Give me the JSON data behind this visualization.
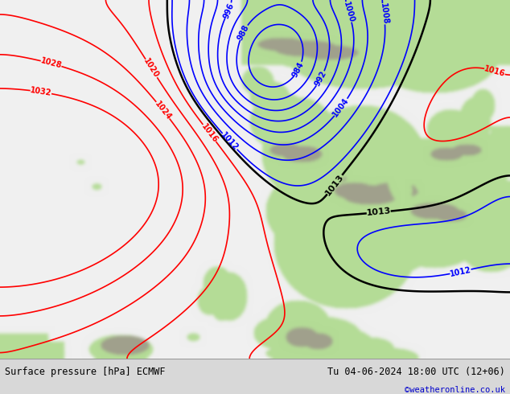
{
  "title_left": "Surface pressure [hPa] ECMWF",
  "title_right": "Tu 04-06-2024 18:00 UTC (12+06)",
  "credit": "©weatheronline.co.uk",
  "fig_width": 6.34,
  "fig_height": 4.9,
  "dpi": 100,
  "credit_color": "#0000cc",
  "ocean_color": [
    240,
    240,
    240
  ],
  "land_color": [
    180,
    220,
    150
  ],
  "mountain_color": [
    160,
    160,
    140
  ],
  "bottom_bar_color": "#d8d8d8",
  "levels_blue": [
    984,
    988,
    992,
    996,
    1000,
    1004,
    1008,
    1012
  ],
  "levels_black": [
    1013
  ],
  "levels_red": [
    1016,
    1020,
    1024,
    1028,
    1032
  ],
  "line_width": 1.2,
  "label_fontsize": 7
}
